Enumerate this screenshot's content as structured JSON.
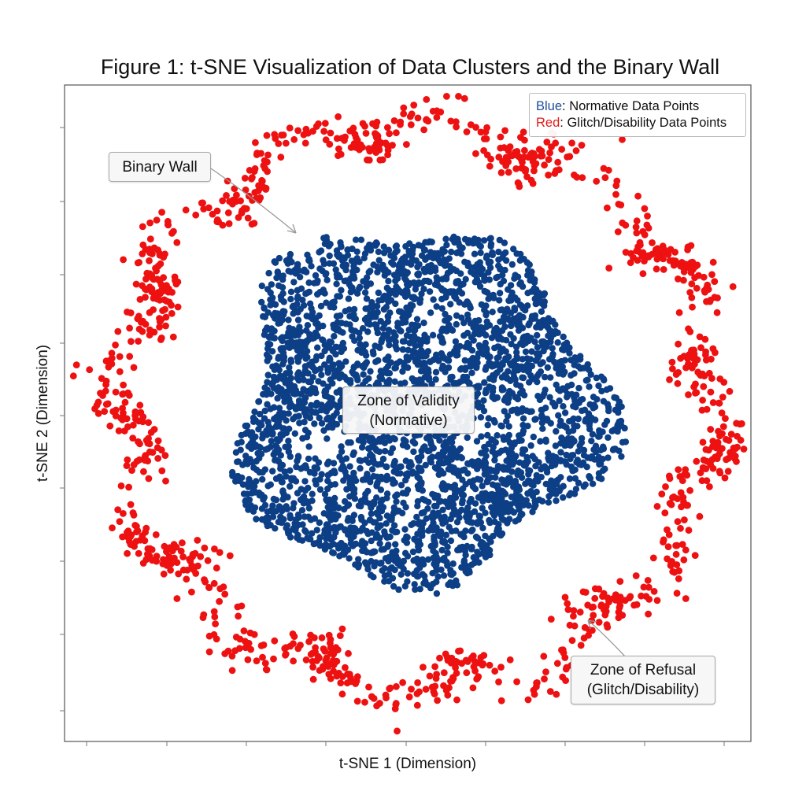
{
  "title": "Figure 1: t-SNE Visualization of Data Clusters and the Binary Wall",
  "chart_data": {
    "type": "scatter",
    "title": "Figure 1: t-SNE Visualization of Data Clusters and the Binary Wall",
    "xlabel": "t-SNE 1 (Dimension)",
    "ylabel": "t-SNE 2 (Dimension)",
    "xlim": [
      -1,
      1
    ],
    "ylim": [
      -1,
      1
    ],
    "grid": false,
    "tick_labels_shown": false,
    "legend_position": "top-right",
    "legend": [
      {
        "key": "Blue",
        "text": ": Normative Data Points",
        "color": "#1f4e9a"
      },
      {
        "key": "Red",
        "text": ": Glitch/Disability Data Points",
        "color": "#e01b1b"
      }
    ],
    "series": [
      {
        "name": "Normative Data Points",
        "color": "#0d3f86",
        "count": 3200,
        "region": "central cluster",
        "center": [
          0.0,
          0.0
        ]
      },
      {
        "name": "Glitch/Disability Data Points",
        "color": "#ee1111",
        "count": 1100,
        "region": "outer ring",
        "center": [
          0.0,
          0.0
        ]
      }
    ],
    "annotations": [
      {
        "lines": [
          "Binary Wall"
        ],
        "arrow": true
      },
      {
        "lines": [
          "Zone of Validity",
          "(Normative)"
        ],
        "arrow": false
      },
      {
        "lines": [
          "Zone of Refusal",
          "(Glitch/Disability)"
        ],
        "arrow": true
      }
    ]
  }
}
